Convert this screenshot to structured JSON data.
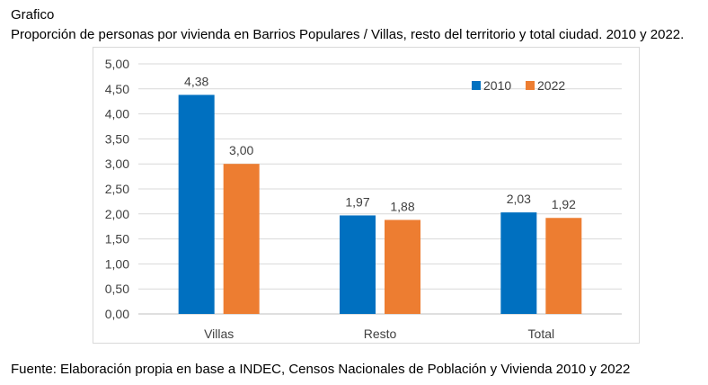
{
  "header": {
    "label": "Grafico",
    "title": "Proporción de personas por vivienda en Barrios Populares / Villas, resto del territorio y total ciudad. 2010 y 2022."
  },
  "source": "Fuente: Elaboración propia en base a INDEC, Censos Nacionales de Población y Vivienda 2010 y 2022",
  "chart_data": {
    "type": "bar",
    "categories": [
      "Villas",
      "Resto",
      "Total"
    ],
    "series": [
      {
        "name": "2010",
        "values": [
          4.38,
          1.97,
          2.03
        ],
        "labels": [
          "4,38",
          "1,97",
          "2,03"
        ],
        "color": "#0070C0"
      },
      {
        "name": "2022",
        "values": [
          3.0,
          1.88,
          1.92
        ],
        "labels": [
          "3,00",
          "1,88",
          "1,92"
        ],
        "color": "#ED7D31"
      }
    ],
    "ylim": [
      0,
      5
    ],
    "yticks": [
      "0,00",
      "0,50",
      "1,00",
      "1,50",
      "2,00",
      "2,50",
      "3,00",
      "3,50",
      "4,00",
      "4,50",
      "5,00"
    ],
    "grid": true,
    "legend_position": "top-right"
  }
}
